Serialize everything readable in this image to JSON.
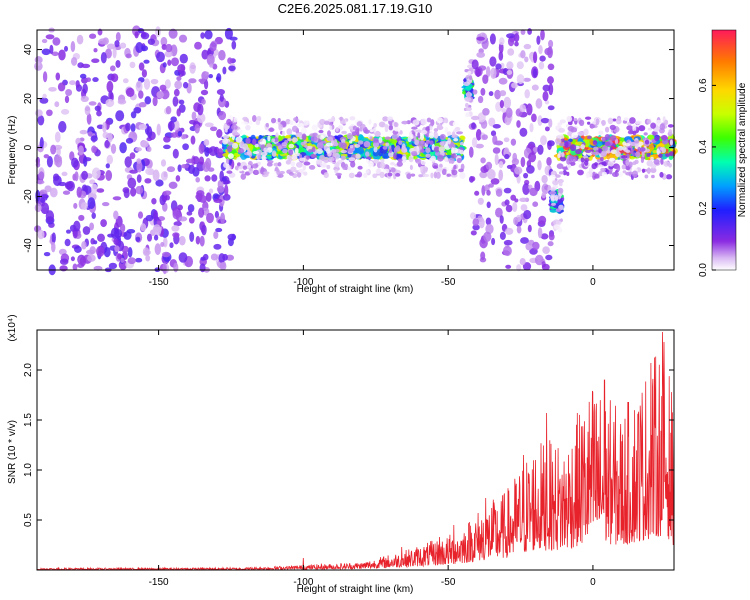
{
  "title": "C2E6.2025.081.17.19.G10",
  "chart_data": [
    {
      "type": "heatmap",
      "xlabel": "Height of straight line (km)",
      "ylabel": "Frequency (Hz)",
      "xlim": [
        -192,
        28
      ],
      "ylim": [
        -50,
        48
      ],
      "xticks": [
        -150,
        -100,
        -50,
        0
      ],
      "xtick_labels": [
        "-150",
        "-100",
        "-50",
        "0"
      ],
      "yticks": [
        -40,
        -20,
        0,
        20,
        40
      ],
      "ytick_labels": [
        "-40",
        "-20",
        "0",
        "20",
        "40"
      ],
      "colorbar": {
        "label": "Normalized spectral amplitude",
        "range": [
          0,
          0.78
        ],
        "ticks": [
          0.0,
          0.2,
          0.4,
          0.6
        ],
        "tick_labels": [
          "0.0",
          "0.2",
          "0.4",
          "0.6"
        ],
        "colormap": "rainbow"
      },
      "features": [
        {
          "x_range": [
            -192,
            -124
          ],
          "description": "broadband noise, all frequencies",
          "amplitude": 0.12
        },
        {
          "x_range": [
            -127,
            -45
          ],
          "center_freq": 0,
          "amplitude": 0.45
        },
        {
          "x_range": [
            -44,
            -42
          ],
          "center_freq": 24,
          "amplitude": 0.35
        },
        {
          "x_range": [
            -42,
            -14
          ],
          "description": "broadband noise",
          "amplitude": 0.1
        },
        {
          "x_range": [
            -14,
            -11
          ],
          "center_freq": -22,
          "amplitude": 0.3
        },
        {
          "x_range": [
            -12,
            28
          ],
          "center_freq": 0,
          "amplitude": 0.6
        }
      ]
    },
    {
      "type": "line",
      "xlabel": "Height of straight line (km)",
      "ylabel": "SNR (10 * v/v)",
      "y_multiplier": "(x10⁴)",
      "xlim": [
        -192,
        28
      ],
      "ylim": [
        0,
        2.4
      ],
      "xticks": [
        -150,
        -100,
        -50,
        0
      ],
      "xtick_labels": [
        "-150",
        "-100",
        "-50",
        "0"
      ],
      "yticks": [
        0.5,
        1.0,
        1.5,
        2.0
      ],
      "ytick_labels": [
        "0.5",
        "1.0",
        "1.5",
        "2.0"
      ],
      "series": [
        {
          "color": "#e8222b",
          "envelope": {
            "x": [
              -192,
              -150,
              -120,
              -100,
              -80,
              -65,
              -50,
              -45,
              -40,
              -30,
              -20,
              -10,
              0,
              10,
              20,
              25,
              28
            ],
            "y": [
              0.02,
              0.02,
              0.025,
              0.05,
              0.08,
              0.2,
              0.35,
              0.45,
              0.6,
              0.8,
              1.3,
              1.3,
              1.9,
              1.6,
              2.1,
              2.35,
              1.6
            ]
          },
          "peaks": [
            {
              "x": -100,
              "y": 0.12
            },
            {
              "x": -66,
              "y": 0.23
            },
            {
              "x": -53,
              "y": 0.33
            },
            {
              "x": -48,
              "y": 0.45
            },
            {
              "x": -37,
              "y": 0.72
            },
            {
              "x": -24,
              "y": 1.15
            },
            {
              "x": -16,
              "y": 1.57
            },
            {
              "x": 4,
              "y": 1.9
            },
            {
              "x": 20,
              "y": 2.07
            },
            {
              "x": 24,
              "y": 2.38
            }
          ]
        }
      ]
    }
  ]
}
